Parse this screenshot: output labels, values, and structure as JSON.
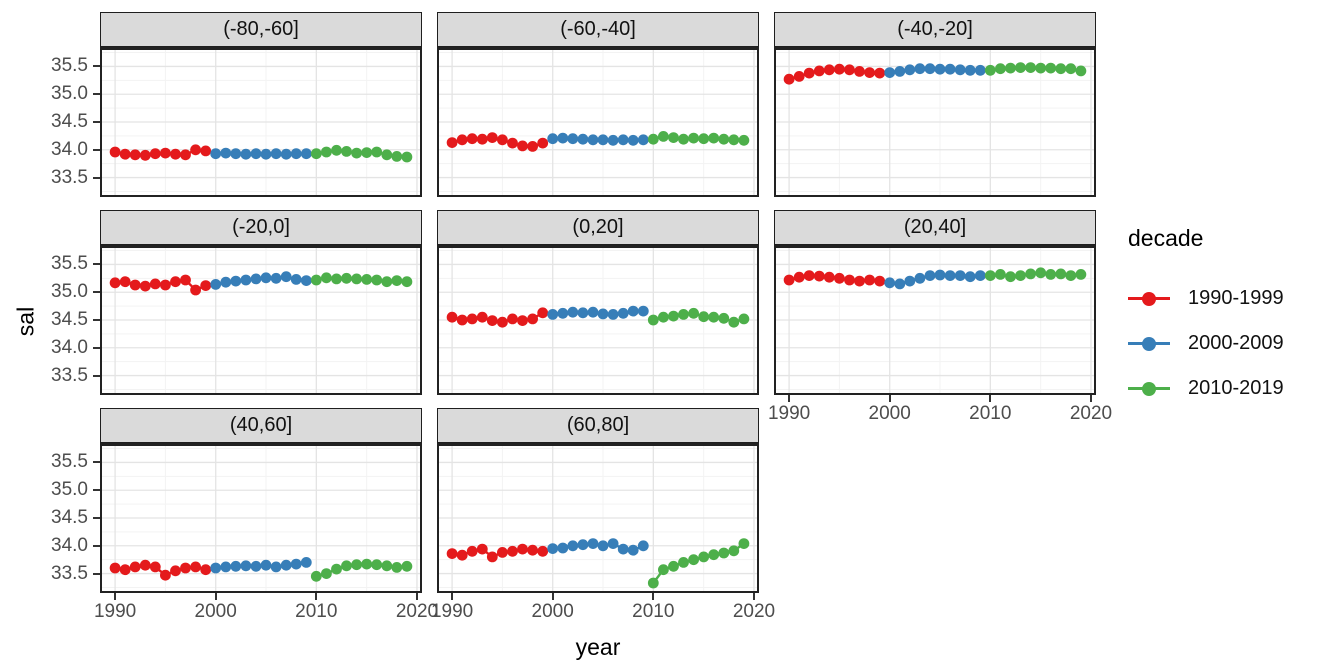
{
  "figure": {
    "y_axis": {
      "title": "sal",
      "tick_labels": [
        "35.5",
        "35.0",
        "34.5",
        "34.0",
        "33.5"
      ],
      "tick_values": [
        35.5,
        35.0,
        34.5,
        34.0,
        33.5
      ]
    },
    "x_axis": {
      "title": "year",
      "tick_labels": [
        "1990",
        "2000",
        "2010",
        "2020"
      ],
      "tick_values": [
        1990,
        2000,
        2010,
        2020
      ]
    },
    "legend": {
      "title": "decade",
      "entries": [
        {
          "label": "1990-1999",
          "color": "#E41A1C"
        },
        {
          "label": "2000-2009",
          "color": "#377EB8"
        },
        {
          "label": "2010-2019",
          "color": "#4DAF4A"
        }
      ]
    },
    "colors": {
      "strip_fill": "#dadada",
      "strip_border": "#1f1f1f",
      "panel_border": "#222222",
      "grid_major": "#e4e4e4",
      "grid_minor": "#f3f3f3",
      "tick_text": "#4d4d4d"
    }
  },
  "chart_data": {
    "type": "line",
    "mark": "line+point",
    "xlabel": "year",
    "ylabel": "sal",
    "xlim": [
      1988.5,
      2020.5
    ],
    "ylim": [
      33.15,
      35.85
    ],
    "x_major_ticks": [
      1990,
      2000,
      2010,
      2020
    ],
    "x_minor_ticks": [
      1995,
      2005,
      2015
    ],
    "y_major_ticks": [
      33.5,
      34.0,
      34.5,
      35.0,
      35.5
    ],
    "y_minor_ticks": [
      33.25,
      33.75,
      34.25,
      34.75,
      35.25,
      35.75
    ],
    "grid": true,
    "legend_position": "right",
    "facets": [
      {
        "label": "(-80,-60]",
        "series": [
          {
            "name": "1990-1999",
            "color": "#E41A1C",
            "start_year": 1990,
            "values": [
              33.96,
              33.92,
              33.91,
              33.9,
              33.93,
              33.94,
              33.92,
              33.91,
              34.0,
              33.98
            ]
          },
          {
            "name": "2000-2009",
            "color": "#377EB8",
            "start_year": 2000,
            "values": [
              33.93,
              33.94,
              33.93,
              33.92,
              33.93,
              33.92,
              33.93,
              33.92,
              33.93,
              33.93
            ]
          },
          {
            "name": "2010-2019",
            "color": "#4DAF4A",
            "start_year": 2010,
            "values": [
              33.93,
              33.96,
              33.99,
              33.97,
              33.94,
              33.95,
              33.96,
              33.91,
              33.88,
              33.87
            ]
          }
        ]
      },
      {
        "label": "(-60,-40]",
        "series": [
          {
            "name": "1990-1999",
            "color": "#E41A1C",
            "start_year": 1990,
            "values": [
              34.13,
              34.18,
              34.2,
              34.19,
              34.22,
              34.18,
              34.12,
              34.07,
              34.06,
              34.12
            ]
          },
          {
            "name": "2000-2009",
            "color": "#377EB8",
            "start_year": 2000,
            "values": [
              34.2,
              34.21,
              34.2,
              34.19,
              34.18,
              34.18,
              34.17,
              34.18,
              34.17,
              34.18
            ]
          },
          {
            "name": "2010-2019",
            "color": "#4DAF4A",
            "start_year": 2010,
            "values": [
              34.19,
              34.24,
              34.22,
              34.19,
              34.21,
              34.2,
              34.21,
              34.19,
              34.18,
              34.17
            ]
          }
        ]
      },
      {
        "label": "(-40,-20]",
        "series": [
          {
            "name": "1990-1999",
            "color": "#E41A1C",
            "start_year": 1990,
            "values": [
              35.27,
              35.32,
              35.38,
              35.42,
              35.44,
              35.45,
              35.44,
              35.41,
              35.39,
              35.38
            ]
          },
          {
            "name": "2000-2009",
            "color": "#377EB8",
            "start_year": 2000,
            "values": [
              35.39,
              35.41,
              35.44,
              35.46,
              35.46,
              35.45,
              35.45,
              35.44,
              35.43,
              35.43
            ]
          },
          {
            "name": "2010-2019",
            "color": "#4DAF4A",
            "start_year": 2010,
            "values": [
              35.43,
              35.46,
              35.47,
              35.48,
              35.48,
              35.47,
              35.47,
              35.46,
              35.46,
              35.42
            ]
          }
        ]
      },
      {
        "label": "(-20,0]",
        "series": [
          {
            "name": "1990-1999",
            "color": "#E41A1C",
            "start_year": 1990,
            "values": [
              35.17,
              35.19,
              35.13,
              35.11,
              35.15,
              35.13,
              35.19,
              35.22,
              35.04,
              35.12
            ]
          },
          {
            "name": "2000-2009",
            "color": "#377EB8",
            "start_year": 2000,
            "values": [
              35.14,
              35.18,
              35.2,
              35.22,
              35.24,
              35.26,
              35.25,
              35.28,
              35.23,
              35.21
            ]
          },
          {
            "name": "2010-2019",
            "color": "#4DAF4A",
            "start_year": 2010,
            "values": [
              35.22,
              35.26,
              35.24,
              35.25,
              35.24,
              35.23,
              35.22,
              35.19,
              35.21,
              35.19
            ]
          }
        ]
      },
      {
        "label": "(0,20]",
        "series": [
          {
            "name": "1990-1999",
            "color": "#E41A1C",
            "start_year": 1990,
            "values": [
              34.55,
              34.5,
              34.52,
              34.55,
              34.49,
              34.46,
              34.52,
              34.49,
              34.52,
              34.63
            ]
          },
          {
            "name": "2000-2009",
            "color": "#377EB8",
            "start_year": 2000,
            "values": [
              34.6,
              34.62,
              34.64,
              34.63,
              34.64,
              34.61,
              34.6,
              34.62,
              34.66,
              34.66
            ]
          },
          {
            "name": "2010-2019",
            "color": "#4DAF4A",
            "start_year": 2010,
            "values": [
              34.5,
              34.55,
              34.57,
              34.6,
              34.62,
              34.56,
              34.55,
              34.53,
              34.46,
              34.52
            ]
          }
        ]
      },
      {
        "label": "(20,40]",
        "series": [
          {
            "name": "1990-1999",
            "color": "#E41A1C",
            "start_year": 1990,
            "values": [
              35.22,
              35.27,
              35.3,
              35.29,
              35.27,
              35.25,
              35.22,
              35.2,
              35.22,
              35.2
            ]
          },
          {
            "name": "2000-2009",
            "color": "#377EB8",
            "start_year": 2000,
            "values": [
              35.17,
              35.15,
              35.2,
              35.25,
              35.3,
              35.31,
              35.3,
              35.3,
              35.28,
              35.3
            ]
          },
          {
            "name": "2010-2019",
            "color": "#4DAF4A",
            "start_year": 2010,
            "values": [
              35.3,
              35.32,
              35.28,
              35.3,
              35.33,
              35.35,
              35.32,
              35.33,
              35.3,
              35.32
            ]
          }
        ]
      },
      {
        "label": "(40,60]",
        "series": [
          {
            "name": "1990-1999",
            "color": "#E41A1C",
            "start_year": 1990,
            "values": [
              33.6,
              33.57,
              33.62,
              33.65,
              33.62,
              33.47,
              33.55,
              33.6,
              33.62,
              33.57
            ]
          },
          {
            "name": "2000-2009",
            "color": "#377EB8",
            "start_year": 2000,
            "values": [
              33.6,
              33.62,
              33.63,
              33.64,
              33.63,
              33.65,
              33.62,
              33.65,
              33.67,
              33.7
            ]
          },
          {
            "name": "2010-2019",
            "color": "#4DAF4A",
            "start_year": 2010,
            "values": [
              33.45,
              33.5,
              33.58,
              33.64,
              33.66,
              33.67,
              33.66,
              33.64,
              33.61,
              33.63
            ]
          }
        ]
      },
      {
        "label": "(60,80]",
        "series": [
          {
            "name": "1990-1999",
            "color": "#E41A1C",
            "start_year": 1990,
            "values": [
              33.86,
              33.83,
              33.9,
              33.94,
              33.8,
              33.88,
              33.9,
              33.94,
              33.92,
              33.9
            ]
          },
          {
            "name": "2000-2009",
            "color": "#377EB8",
            "start_year": 2000,
            "values": [
              33.95,
              33.96,
              34.0,
              34.02,
              34.04,
              34.0,
              34.04,
              33.94,
              33.92,
              34.0
            ]
          },
          {
            "name": "2010-2019",
            "color": "#4DAF4A",
            "start_year": 2010,
            "values": [
              33.33,
              33.57,
              33.63,
              33.7,
              33.75,
              33.8,
              33.84,
              33.87,
              33.91,
              34.04
            ]
          }
        ]
      }
    ]
  }
}
